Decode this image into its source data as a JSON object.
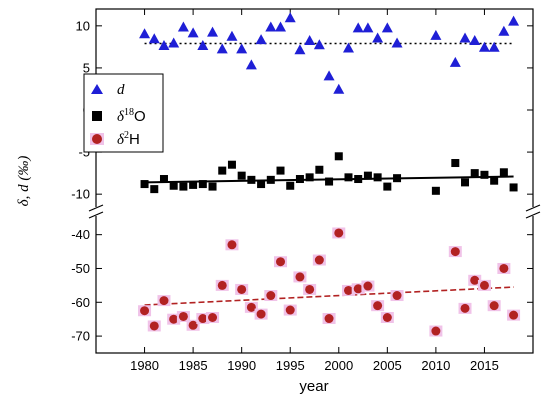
{
  "chart_data": {
    "type": "scatter",
    "xlabel": "year",
    "ylabel": "δ, d (‰)",
    "xlim": [
      1975,
      2020
    ],
    "xticks": [
      1980,
      1985,
      1990,
      1995,
      2000,
      2005,
      2010,
      2015
    ],
    "broken_y_axis": true,
    "upper_panel": {
      "ylim": [
        -12,
        12
      ],
      "yticks": [
        10,
        5,
        0,
        -5,
        -10
      ]
    },
    "lower_panel": {
      "ylim": [
        -75,
        -33
      ],
      "yticks": [
        -40,
        -50,
        -60,
        -70
      ]
    },
    "legend": {
      "position": "upper-left",
      "entries": [
        {
          "symbol": "triangle",
          "base": "d",
          "sup": ""
        },
        {
          "symbol": "square",
          "base": "δ",
          "sup": "18",
          "tail": "O"
        },
        {
          "symbol": "circle",
          "base": "δ",
          "sup": "2",
          "tail": "H"
        }
      ]
    },
    "series": [
      {
        "symbol": "triangle",
        "color": "#1f1fd6",
        "panel": "upper",
        "points": [
          [
            1980,
            9.0
          ],
          [
            1981,
            8.4
          ],
          [
            1982,
            7.6
          ],
          [
            1983,
            7.9
          ],
          [
            1984,
            9.8
          ],
          [
            1985,
            9.1
          ],
          [
            1986,
            7.6
          ],
          [
            1987,
            9.2
          ],
          [
            1988,
            7.2
          ],
          [
            1989,
            8.7
          ],
          [
            1990,
            7.2
          ],
          [
            1991,
            5.3
          ],
          [
            1992,
            8.3
          ],
          [
            1993,
            9.8
          ],
          [
            1994,
            9.8
          ],
          [
            1995,
            10.9
          ],
          [
            1996,
            7.1
          ],
          [
            1997,
            8.2
          ],
          [
            1998,
            7.7
          ],
          [
            1999,
            4.0
          ],
          [
            2000,
            2.4
          ],
          [
            2001,
            7.3
          ],
          [
            2002,
            9.7
          ],
          [
            2003,
            9.7
          ],
          [
            2004,
            8.5
          ],
          [
            2005,
            9.7
          ],
          [
            2006,
            7.9
          ],
          [
            2010,
            8.8
          ],
          [
            2012,
            5.6
          ],
          [
            2013,
            8.5
          ],
          [
            2014,
            8.2
          ],
          [
            2015,
            7.4
          ],
          [
            2016,
            7.4
          ],
          [
            2017,
            9.3
          ],
          [
            2018,
            10.5
          ]
        ],
        "trend": {
          "style": "dotted",
          "y_start": 7.9,
          "y_end": 7.9
        }
      },
      {
        "symbol": "square",
        "color": "#000000",
        "panel": "upper",
        "points": [
          [
            1980,
            -8.8
          ],
          [
            1981,
            -9.4
          ],
          [
            1982,
            -8.2
          ],
          [
            1983,
            -9.0
          ],
          [
            1984,
            -9.1
          ],
          [
            1985,
            -8.9
          ],
          [
            1986,
            -8.8
          ],
          [
            1987,
            -9.1
          ],
          [
            1988,
            -7.2
          ],
          [
            1989,
            -6.5
          ],
          [
            1990,
            -7.8
          ],
          [
            1991,
            -8.3
          ],
          [
            1992,
            -8.8
          ],
          [
            1993,
            -8.3
          ],
          [
            1994,
            -7.2
          ],
          [
            1995,
            -9.0
          ],
          [
            1996,
            -8.2
          ],
          [
            1997,
            -8.0
          ],
          [
            1998,
            -7.1
          ],
          [
            1999,
            -8.5
          ],
          [
            2000,
            -5.5
          ],
          [
            2001,
            -8.0
          ],
          [
            2002,
            -8.2
          ],
          [
            2003,
            -7.8
          ],
          [
            2004,
            -8.0
          ],
          [
            2005,
            -9.1
          ],
          [
            2006,
            -8.1
          ],
          [
            2010,
            -9.6
          ],
          [
            2012,
            -6.3
          ],
          [
            2013,
            -8.6
          ],
          [
            2014,
            -7.5
          ],
          [
            2015,
            -7.7
          ],
          [
            2016,
            -8.4
          ],
          [
            2017,
            -7.4
          ],
          [
            2018,
            -9.2
          ]
        ],
        "trend": {
          "style": "solid",
          "y_start": -8.6,
          "y_end": -7.9
        }
      },
      {
        "symbol": "circle",
        "color": "#b22222",
        "panel": "lower",
        "points": [
          [
            1980,
            -62.5
          ],
          [
            1981,
            -67.0
          ],
          [
            1982,
            -59.5
          ],
          [
            1983,
            -65.0
          ],
          [
            1984,
            -64.2
          ],
          [
            1985,
            -66.8
          ],
          [
            1986,
            -64.8
          ],
          [
            1987,
            -64.5
          ],
          [
            1988,
            -55.0
          ],
          [
            1989,
            -43.0
          ],
          [
            1990,
            -56.2
          ],
          [
            1991,
            -61.5
          ],
          [
            1992,
            -63.5
          ],
          [
            1993,
            -58.0
          ],
          [
            1994,
            -48.0
          ],
          [
            1995,
            -62.3
          ],
          [
            1996,
            -52.5
          ],
          [
            1997,
            -56.2
          ],
          [
            1998,
            -47.5
          ],
          [
            1999,
            -64.8
          ],
          [
            2000,
            -39.5
          ],
          [
            2001,
            -56.5
          ],
          [
            2002,
            -56.0
          ],
          [
            2003,
            -55.2
          ],
          [
            2004,
            -61.0
          ],
          [
            2005,
            -64.5
          ],
          [
            2006,
            -58.0
          ],
          [
            2010,
            -68.5
          ],
          [
            2012,
            -45.0
          ],
          [
            2013,
            -61.8
          ],
          [
            2014,
            -53.5
          ],
          [
            2015,
            -55.0
          ],
          [
            2016,
            -61.0
          ],
          [
            2017,
            -50.0
          ],
          [
            2018,
            -63.8
          ]
        ],
        "trend": {
          "style": "dashed",
          "y_start": -60.8,
          "y_end": -55.5
        }
      }
    ]
  }
}
